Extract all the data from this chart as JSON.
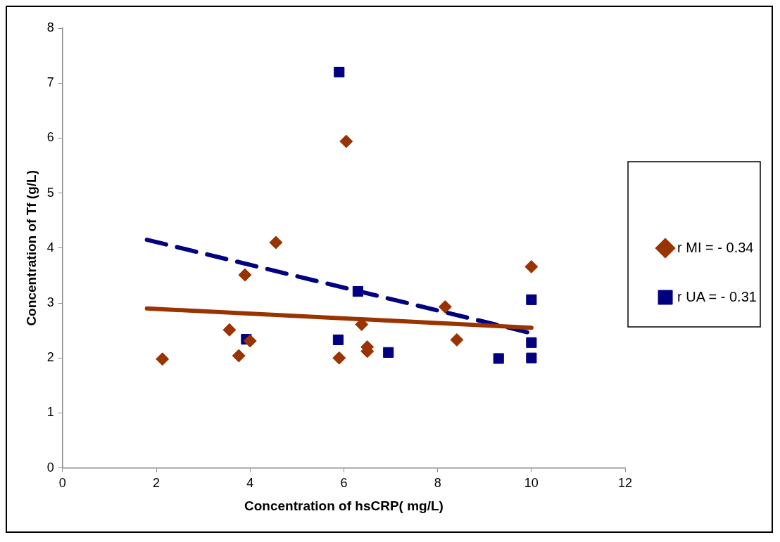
{
  "chart_data": {
    "type": "scatter",
    "xlabel": "Concentration of hsCRP( mg/L)",
    "ylabel": "Concentration of Tf (g/L)",
    "xlim": [
      0,
      12
    ],
    "xticks": [
      0,
      2,
      4,
      6,
      8,
      10,
      12
    ],
    "ylim": [
      0,
      8
    ],
    "yticks": [
      0,
      1,
      2,
      3,
      4,
      5,
      6,
      7,
      8
    ],
    "grid": false,
    "legend": "right",
    "series": [
      {
        "name": "r MI = - 0.34",
        "color": "#993300",
        "marker": "diamond",
        "x": [
          2.13,
          3.56,
          3.76,
          3.89,
          4.0,
          4.55,
          5.9,
          6.05,
          6.38,
          6.5,
          6.5,
          8.16,
          8.41,
          10.0
        ],
        "values": [
          1.98,
          2.51,
          2.04,
          3.51,
          2.31,
          4.1,
          2.0,
          5.94,
          2.61,
          2.2,
          2.12,
          2.93,
          2.33,
          3.66
        ]
      },
      {
        "name": "r UA = - 0.31",
        "color": "#000080",
        "marker": "square",
        "x": [
          3.92,
          5.9,
          5.88,
          6.3,
          6.95,
          9.3,
          10,
          10,
          10
        ],
        "values": [
          2.34,
          7.2,
          2.33,
          3.21,
          2.1,
          1.99,
          3.06,
          2.28,
          2.0
        ]
      },
      {
        "type": "line",
        "color": "#993300",
        "line_style": "solid",
        "marker": "none",
        "x": [
          1.8,
          10
        ],
        "values": [
          2.9,
          2.55
        ]
      },
      {
        "type": "line",
        "color": "#000080",
        "line_style": "dashed",
        "marker": "none",
        "x": [
          1.8,
          10
        ],
        "values": [
          4.15,
          2.45
        ]
      }
    ]
  }
}
